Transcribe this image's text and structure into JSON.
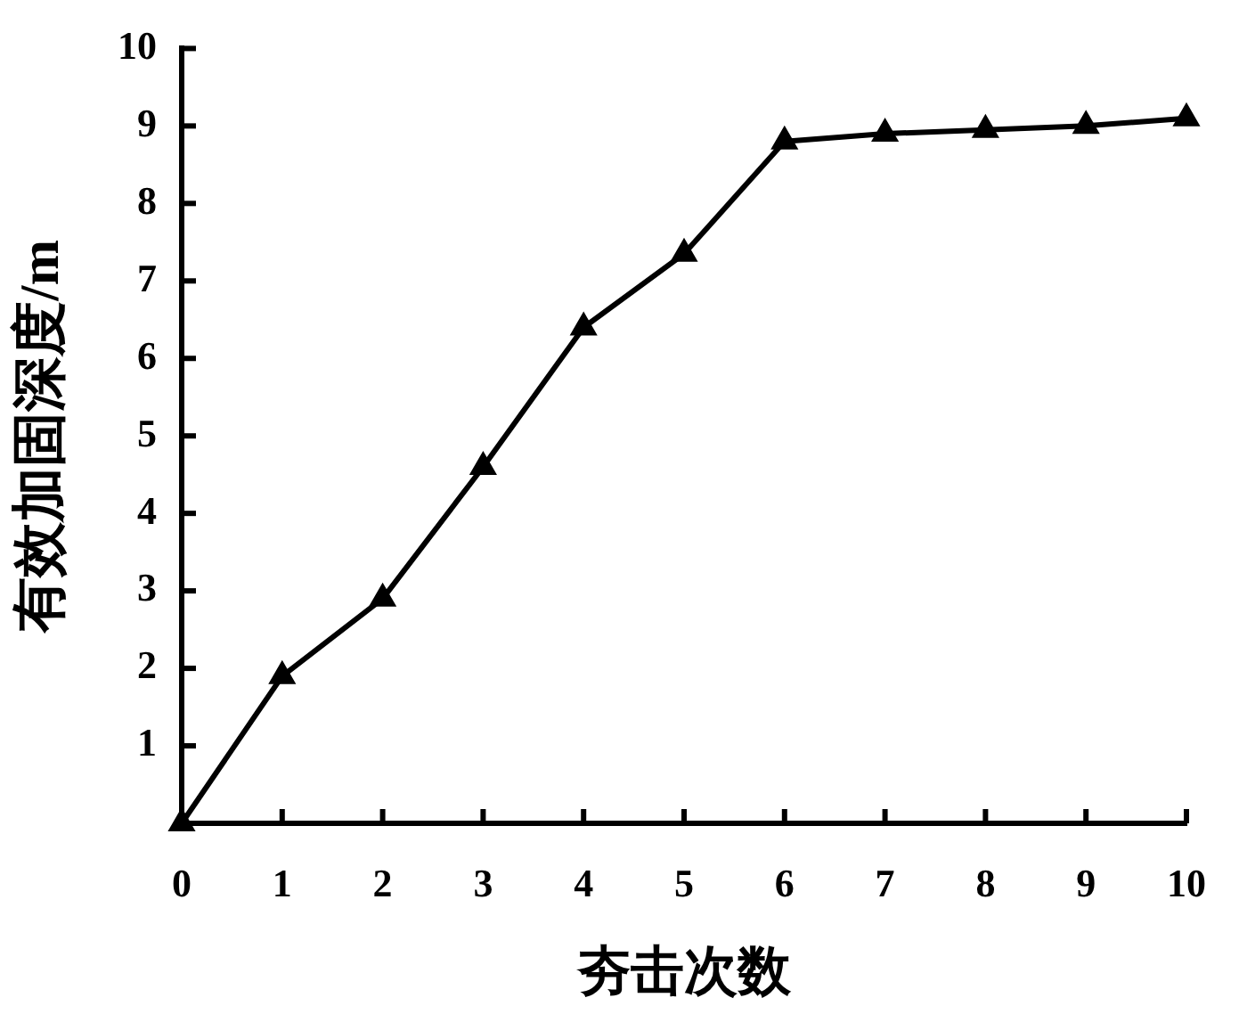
{
  "chart_data": {
    "type": "line",
    "xlabel": "夯击次数",
    "ylabel": "有效加固深度/m",
    "x": [
      0,
      1,
      2,
      3,
      4,
      5,
      6,
      7,
      8,
      9,
      10
    ],
    "series": [
      {
        "color": "#000000",
        "values": [
          0,
          1.9,
          2.9,
          4.6,
          6.4,
          7.35,
          8.8,
          8.9,
          8.95,
          9.0,
          9.1
        ]
      }
    ],
    "xlim": [
      0,
      10
    ],
    "ylim": [
      0,
      10
    ],
    "xticks": [
      0,
      1,
      2,
      3,
      4,
      5,
      6,
      7,
      8,
      9,
      10
    ],
    "yticks": [
      1,
      2,
      3,
      4,
      5,
      6,
      7,
      8,
      9,
      10
    ],
    "grid": false,
    "legend": false,
    "marker": "triangle",
    "line_style": "solid"
  }
}
